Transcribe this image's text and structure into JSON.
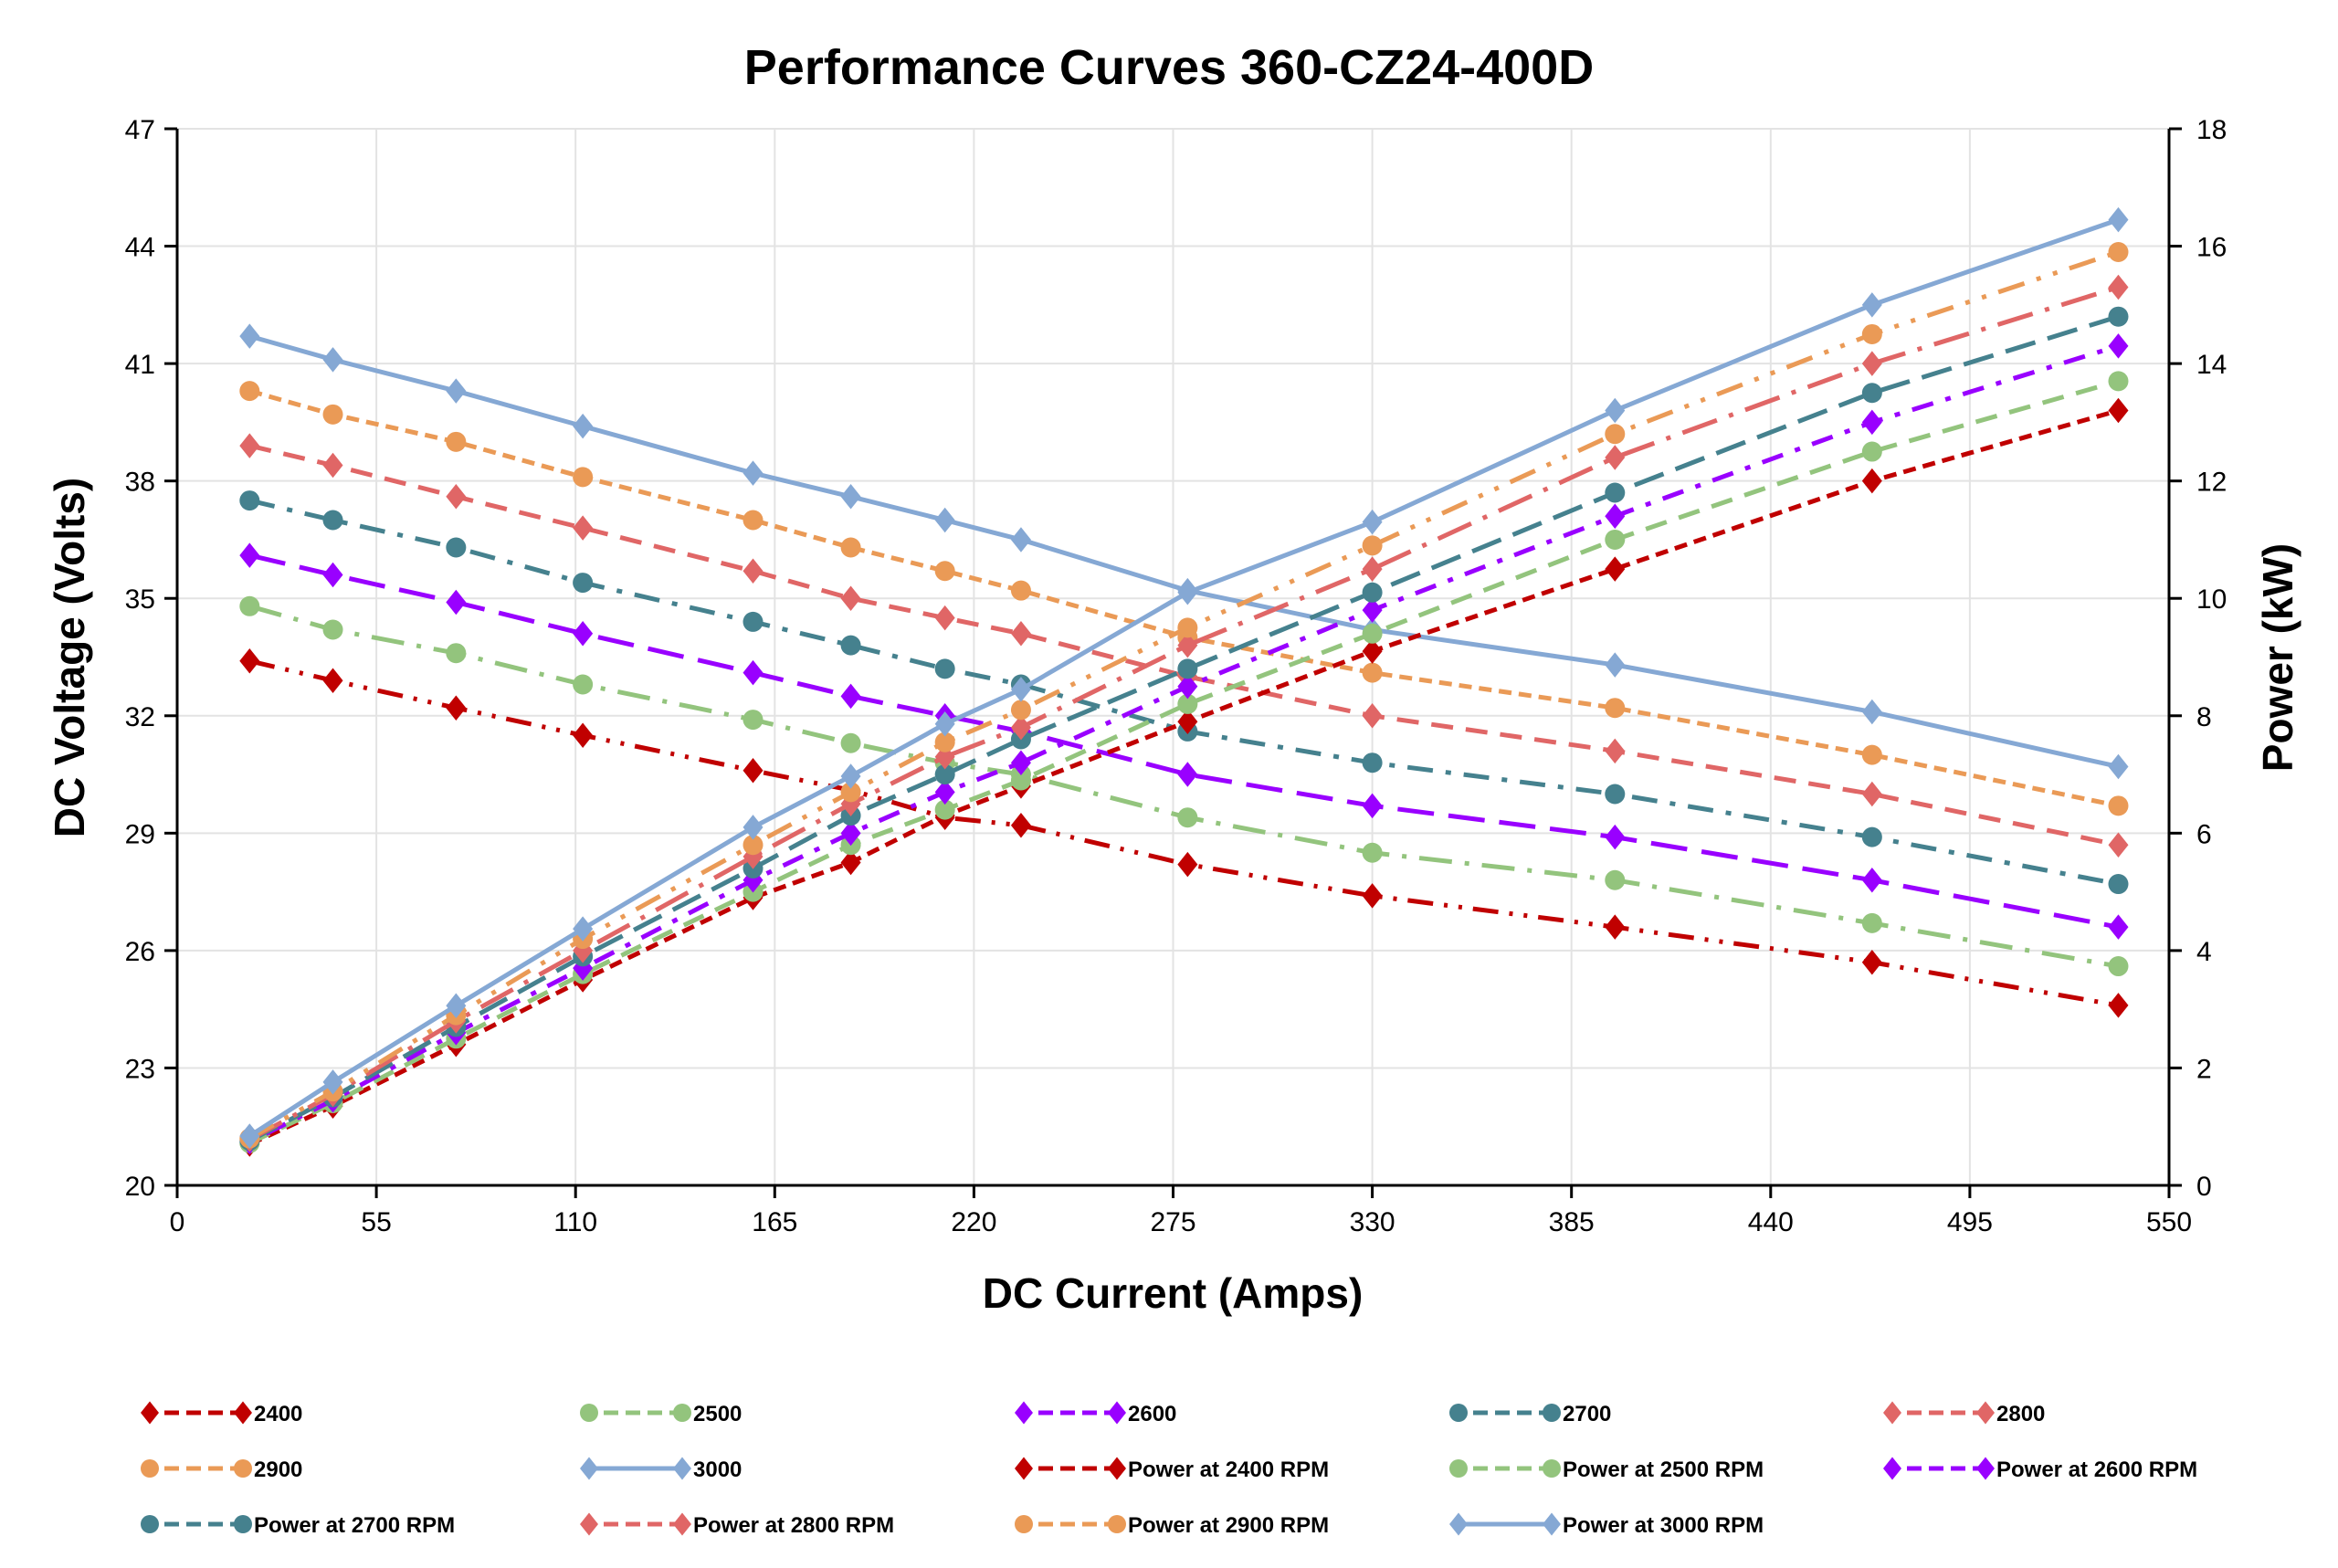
{
  "chart_data": {
    "type": "line",
    "title": "Performance Curves 360-CZ24-400D",
    "xlabel": "DC Current (Amps)",
    "ylabel": "DC Voltage (Volts)",
    "y2label": "Power (kW)",
    "xlim": [
      0,
      550
    ],
    "ylim": [
      20,
      47
    ],
    "y2lim": [
      0,
      18
    ],
    "xticks": [
      0,
      55,
      110,
      165,
      220,
      275,
      330,
      385,
      440,
      495,
      550
    ],
    "yticks": [
      20,
      23,
      26,
      29,
      32,
      35,
      38,
      41,
      44,
      47
    ],
    "y2ticks": [
      0,
      2,
      4,
      6,
      8,
      10,
      12,
      14,
      16,
      18
    ],
    "grid": true,
    "legend_position": "bottom",
    "x": [
      20,
      43,
      77,
      112,
      159,
      186,
      212,
      233,
      279,
      330,
      397,
      468,
      536
    ],
    "series": [
      {
        "name": "2400",
        "axis": "left",
        "color": "#C00000",
        "marker": "diamond",
        "values": [
          33.4,
          32.9,
          32.2,
          31.5,
          30.6,
          30.1,
          29.4,
          29.2,
          28.2,
          27.4,
          26.6,
          25.7,
          24.6
        ]
      },
      {
        "name": "2500",
        "axis": "left",
        "color": "#93C47D",
        "marker": "circle",
        "values": [
          34.8,
          34.2,
          33.6,
          32.8,
          31.9,
          31.3,
          30.8,
          30.5,
          29.4,
          28.5,
          27.8,
          26.7,
          25.6
        ]
      },
      {
        "name": "2600",
        "axis": "left",
        "color": "#9900FF",
        "marker": "diamond",
        "values": [
          36.1,
          35.6,
          34.9,
          34.1,
          33.1,
          32.5,
          32.0,
          31.6,
          30.5,
          29.7,
          28.9,
          27.8,
          26.6
        ]
      },
      {
        "name": "2700",
        "axis": "left",
        "color": "#45818E",
        "marker": "circle",
        "values": [
          37.5,
          37.0,
          36.3,
          35.4,
          34.4,
          33.8,
          33.2,
          32.8,
          31.6,
          30.8,
          30.0,
          28.9,
          27.7
        ]
      },
      {
        "name": "2800",
        "axis": "left",
        "color": "#E06666",
        "marker": "diamond",
        "values": [
          38.9,
          38.4,
          37.6,
          36.8,
          35.7,
          35.0,
          34.5,
          34.1,
          33.0,
          32.0,
          31.1,
          30.0,
          28.7
        ]
      },
      {
        "name": "2900",
        "axis": "left",
        "color": "#EA9A56",
        "marker": "circle",
        "values": [
          40.3,
          39.7,
          39.0,
          38.1,
          37.0,
          36.3,
          35.7,
          35.2,
          34.0,
          33.1,
          32.2,
          31.0,
          29.7
        ]
      },
      {
        "name": "3000",
        "axis": "left",
        "color": "#85A8D4",
        "marker": "diamond",
        "values": [
          41.7,
          41.1,
          40.3,
          39.4,
          38.2,
          37.6,
          37.0,
          36.5,
          35.2,
          34.2,
          33.3,
          32.1,
          30.7
        ]
      },
      {
        "name": "Power at 2400 RPM",
        "axis": "right",
        "color": "#C00000",
        "marker": "diamond",
        "values": [
          0.7,
          1.35,
          2.4,
          3.5,
          4.9,
          5.5,
          6.3,
          6.8,
          7.9,
          9.1,
          10.5,
          12.0,
          13.2
        ]
      },
      {
        "name": "Power at 2500 RPM",
        "axis": "right",
        "color": "#93C47D",
        "marker": "circle",
        "values": [
          0.72,
          1.4,
          2.5,
          3.6,
          5.0,
          5.8,
          6.4,
          6.9,
          8.2,
          9.4,
          11.0,
          12.5,
          13.7
        ]
      },
      {
        "name": "Power at 2600 RPM",
        "axis": "right",
        "color": "#9900FF",
        "marker": "diamond",
        "values": [
          0.74,
          1.45,
          2.6,
          3.7,
          5.2,
          6.0,
          6.7,
          7.2,
          8.5,
          9.8,
          11.4,
          13.0,
          14.3
        ]
      },
      {
        "name": "Power at 2700 RPM",
        "axis": "right",
        "color": "#45818E",
        "marker": "circle",
        "values": [
          0.76,
          1.5,
          2.7,
          3.9,
          5.4,
          6.3,
          7.0,
          7.6,
          8.8,
          10.1,
          11.8,
          13.5,
          14.8
        ]
      },
      {
        "name": "Power at 2800 RPM",
        "axis": "right",
        "color": "#E06666",
        "marker": "diamond",
        "values": [
          0.78,
          1.55,
          2.8,
          4.0,
          5.6,
          6.5,
          7.3,
          7.8,
          9.2,
          10.5,
          12.4,
          14.0,
          15.3
        ]
      },
      {
        "name": "Power at 2900 RPM",
        "axis": "right",
        "color": "#EA9A56",
        "marker": "circle",
        "values": [
          0.8,
          1.6,
          2.9,
          4.2,
          5.8,
          6.7,
          7.55,
          8.1,
          9.5,
          10.9,
          12.8,
          14.5,
          15.9
        ]
      },
      {
        "name": "Power at 3000 RPM",
        "axis": "right",
        "color": "#85A8D4",
        "marker": "diamond",
        "values": [
          0.84,
          1.76,
          3.06,
          4.37,
          6.1,
          6.97,
          7.86,
          8.45,
          10.1,
          11.3,
          13.2,
          15.0,
          16.45
        ]
      }
    ]
  }
}
